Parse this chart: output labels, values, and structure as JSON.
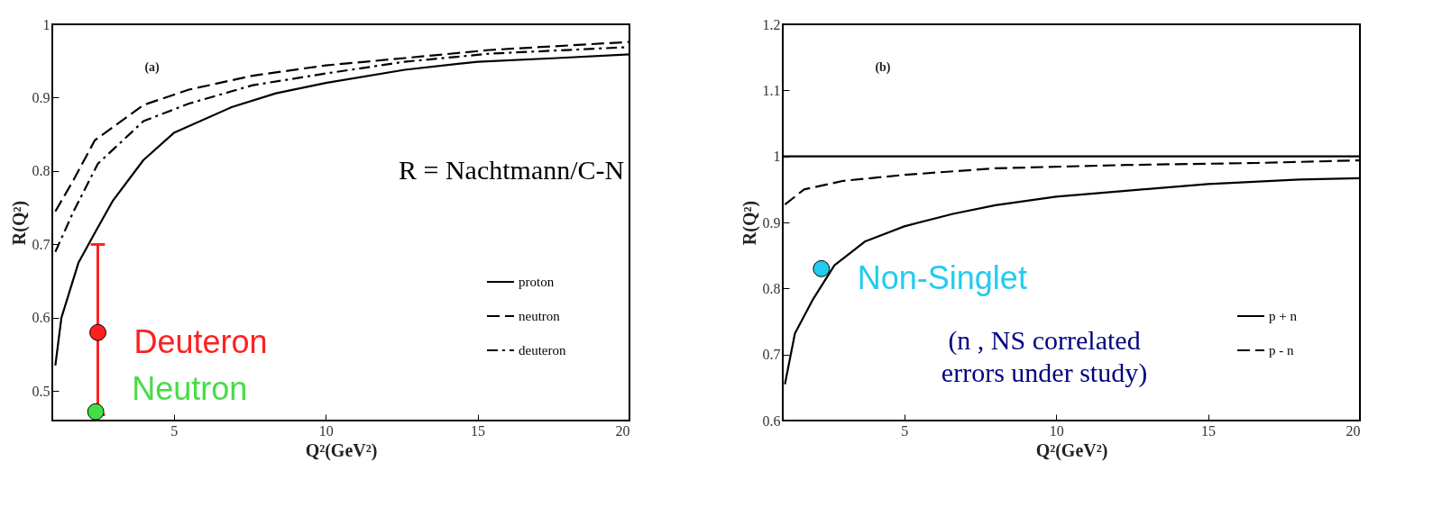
{
  "chart_data": [
    {
      "type": "line",
      "xlabel": "Q²(GeV²)",
      "ylabel": "R(Q²)",
      "xlim": [
        1,
        20
      ],
      "ylim": [
        0.46,
        1
      ],
      "xticks": [
        5,
        10,
        15,
        20
      ],
      "yticks": [
        0.5,
        0.6,
        0.7,
        0.8,
        0.9,
        1
      ],
      "grid": false,
      "legend": "bottom right",
      "annotations": [
        "(a)",
        "R = Nachtmann/C-N"
      ],
      "series": [
        {
          "name": "proton",
          "color": "#000000",
          "line_style": "solid",
          "x": [
            1.1,
            1.3,
            1.86,
            2.43,
            3,
            4,
            5,
            6.9,
            8.36,
            10,
            12.6,
            15,
            17.6,
            20
          ],
          "values": [
            0.535,
            0.6,
            0.675,
            0.718,
            0.76,
            0.815,
            0.852,
            0.887,
            0.906,
            0.92,
            0.938,
            0.949,
            0.954,
            0.959
          ]
        },
        {
          "name": "neutron",
          "color": "#000000",
          "line_style": "dashed",
          "x": [
            1.1,
            1.7,
            2.4,
            4,
            5.5,
            7.6,
            10,
            12.6,
            15.4,
            20
          ],
          "values": [
            0.745,
            0.788,
            0.842,
            0.89,
            0.911,
            0.93,
            0.944,
            0.954,
            0.965,
            0.976
          ]
        },
        {
          "name": "deuteron",
          "color": "#000000",
          "line_style": "dashdot",
          "x": [
            1.1,
            1.7,
            2.5,
            4,
            5.5,
            7.6,
            10,
            12.6,
            15.4,
            20
          ],
          "values": [
            0.69,
            0.745,
            0.81,
            0.868,
            0.892,
            0.917,
            0.933,
            0.949,
            0.96,
            0.969
          ]
        },
        {
          "name": "Deuteron",
          "type": "scatter",
          "marker": "circle",
          "color": "#ff2020",
          "x": [
            2.5
          ],
          "values": [
            0.58
          ],
          "errors": [
            [
              0.468,
              0.7
            ]
          ]
        },
        {
          "name": "Neutron",
          "type": "scatter",
          "marker": "circle",
          "color": "#44dd44",
          "x": [
            2.43
          ],
          "values": [
            0.472
          ]
        }
      ]
    },
    {
      "type": "line",
      "xlabel": "Q²(GeV²)",
      "ylabel": "R(Q²)",
      "xlim": [
        1,
        20
      ],
      "ylim": [
        0.6,
        1.2
      ],
      "xticks": [
        5,
        10,
        15,
        20
      ],
      "yticks": [
        0.6,
        0.7,
        0.8,
        0.9,
        1,
        1.1,
        1.2
      ],
      "grid": false,
      "legend": "bottom right",
      "annotations": [
        "(b)",
        "(n , NS correlated errors under study)"
      ],
      "ref_lines": [
        {
          "axis": "y",
          "value": 1,
          "color": "#000000",
          "line_style": "solid"
        }
      ],
      "series": [
        {
          "name": "p + n",
          "color": "#000000",
          "line_style": "solid",
          "x": [
            1.07,
            1.4,
            2,
            2.7,
            3.7,
            5,
            6.6,
            8,
            10,
            12.3,
            15,
            18,
            20
          ],
          "values": [
            0.655,
            0.732,
            0.784,
            0.835,
            0.871,
            0.894,
            0.913,
            0.926,
            0.939,
            0.948,
            0.958,
            0.965,
            0.967
          ]
        },
        {
          "name": "p - n",
          "color": "#000000",
          "line_style": "dashed",
          "x": [
            1.07,
            1.7,
            3,
            5,
            8,
            12.3,
            16.6,
            20
          ],
          "values": [
            0.927,
            0.95,
            0.963,
            0.972,
            0.982,
            0.987,
            0.99,
            0.994
          ]
        },
        {
          "name": "Non-Singlet",
          "type": "scatter",
          "marker": "circle",
          "color": "#22ccee",
          "x": [
            2.27
          ],
          "values": [
            0.83
          ]
        }
      ]
    }
  ]
}
